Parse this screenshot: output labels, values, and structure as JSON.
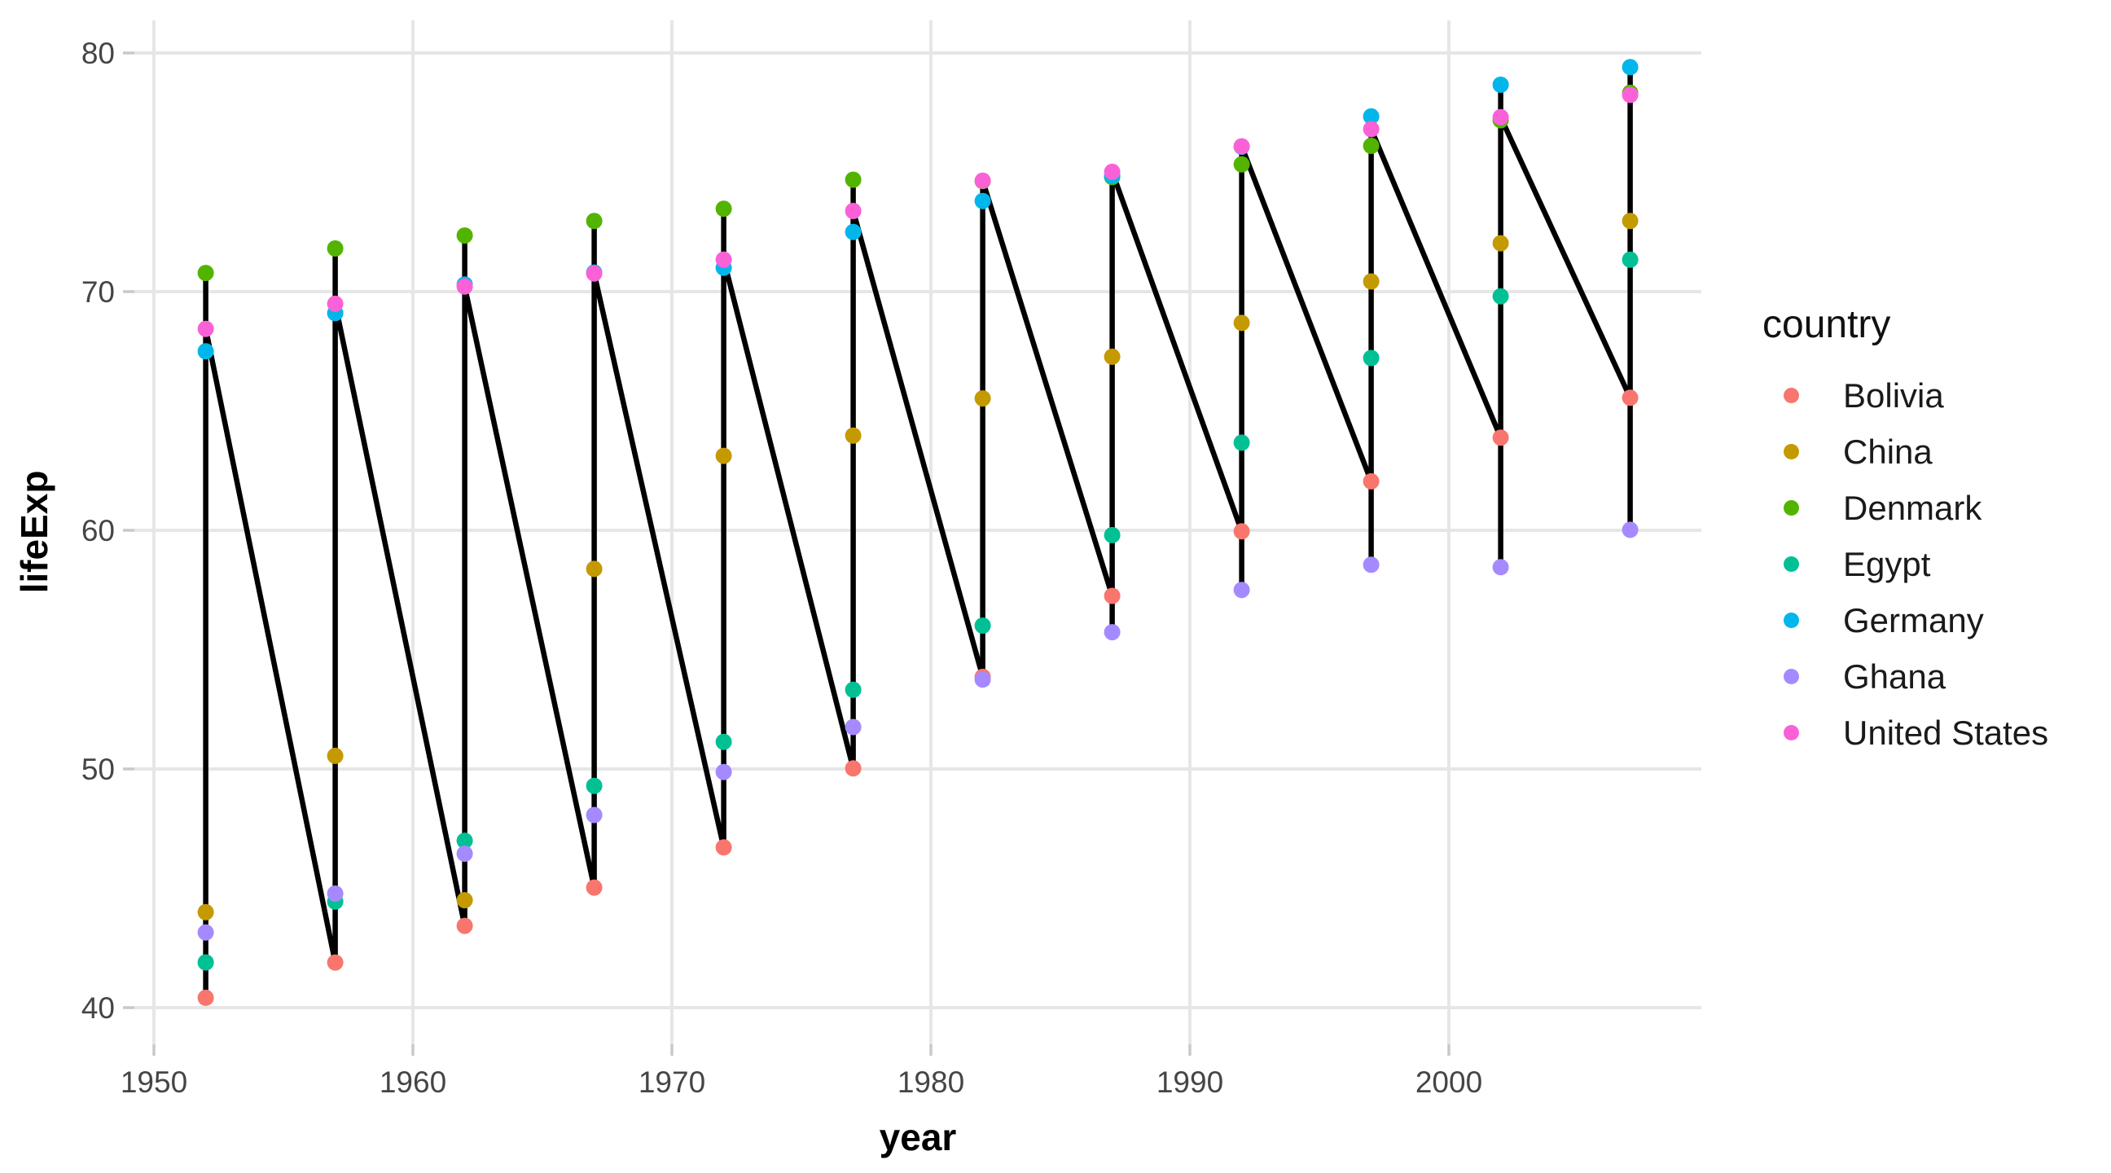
{
  "chart_data": {
    "type": "scatter",
    "title": "",
    "xlabel": "year",
    "ylabel": "lifeExp",
    "x": [
      1952,
      1957,
      1962,
      1967,
      1972,
      1977,
      1982,
      1987,
      1992,
      1997,
      2002,
      2007
    ],
    "series": [
      {
        "name": "Bolivia",
        "color": "#F8766D",
        "values": [
          40.414,
          41.89,
          43.428,
          45.032,
          46.714,
          50.023,
          53.859,
          57.251,
          59.957,
          62.05,
          63.883,
          65.554
        ]
      },
      {
        "name": "China",
        "color": "#C49A00",
        "values": [
          44.0,
          50.549,
          44.501,
          58.381,
          63.119,
          63.968,
          65.525,
          67.274,
          68.69,
          70.426,
          72.028,
          72.961
        ]
      },
      {
        "name": "Denmark",
        "color": "#53B400",
        "values": [
          70.78,
          71.81,
          72.35,
          72.96,
          73.47,
          74.69,
          74.63,
          74.8,
          75.33,
          76.11,
          77.18,
          78.332
        ]
      },
      {
        "name": "Egypt",
        "color": "#00C094",
        "values": [
          41.893,
          44.444,
          46.992,
          49.293,
          51.137,
          53.319,
          56.006,
          59.797,
          63.674,
          67.217,
          69.806,
          71.338
        ]
      },
      {
        "name": "Germany",
        "color": "#00B6EB",
        "values": [
          67.5,
          69.1,
          70.3,
          70.8,
          71.0,
          72.5,
          73.8,
          74.847,
          76.07,
          77.34,
          78.67,
          79.406
        ]
      },
      {
        "name": "Ghana",
        "color": "#A58AFF",
        "values": [
          43.149,
          44.779,
          46.452,
          48.072,
          49.875,
          51.756,
          53.744,
          55.729,
          57.501,
          58.556,
          58.453,
          60.022
        ]
      },
      {
        "name": "United States",
        "color": "#FB61D7",
        "values": [
          68.44,
          69.49,
          70.21,
          70.76,
          71.34,
          73.38,
          74.65,
          75.02,
          76.09,
          76.81,
          77.31,
          78.242
        ]
      }
    ],
    "line": "single black line connecting every point ordered by year, then series order within each year",
    "x_ticks": [
      1950,
      1960,
      1970,
      1980,
      1990,
      2000
    ],
    "y_ticks": [
      40,
      50,
      60,
      70,
      80
    ],
    "xlim": [
      1949.25,
      2009.75
    ],
    "ylim": [
      38.46,
      81.36
    ],
    "grid": "major gridlines only",
    "legend_position": "right"
  },
  "legend": {
    "title": "country",
    "items": [
      {
        "label": "Bolivia",
        "color": "#F8766D"
      },
      {
        "label": "China",
        "color": "#C49A00"
      },
      {
        "label": "Denmark",
        "color": "#53B400"
      },
      {
        "label": "Egypt",
        "color": "#00C094"
      },
      {
        "label": "Germany",
        "color": "#00B6EB"
      },
      {
        "label": "Ghana",
        "color": "#A58AFF"
      },
      {
        "label": "United States",
        "color": "#FB61D7"
      }
    ]
  },
  "colors": {
    "background": "#FFFFFF",
    "gridline": "#E6E6E6",
    "tick_mark": "#C9C9C9",
    "tick_label": "#454545",
    "axis_title": "#000000",
    "data_line": "#000000"
  }
}
